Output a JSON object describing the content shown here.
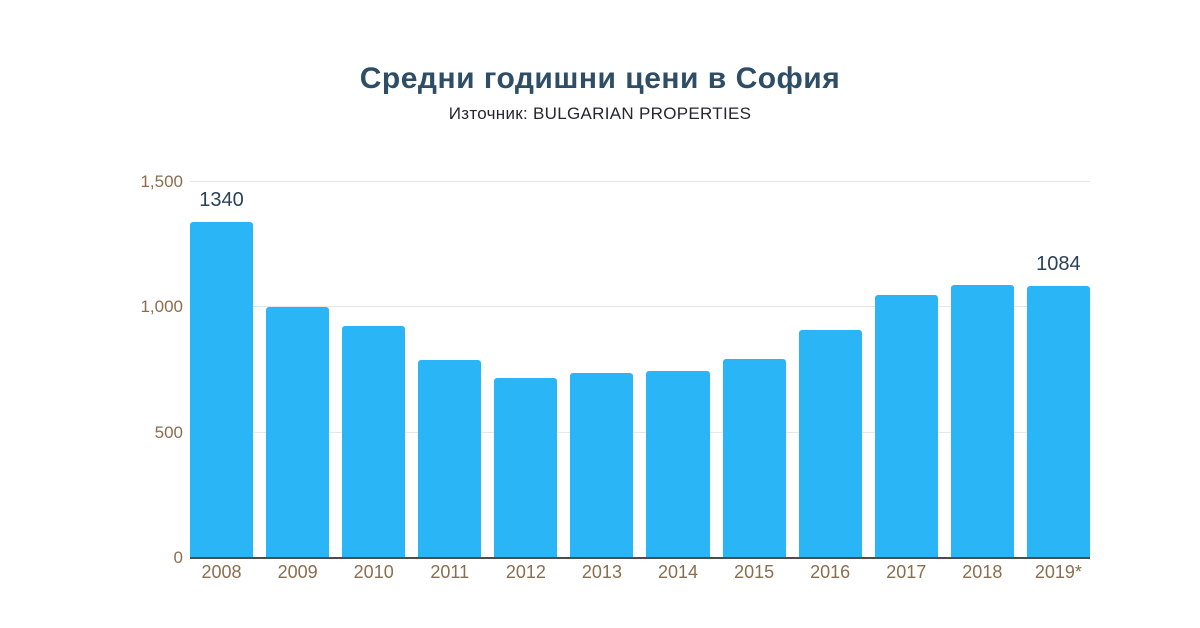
{
  "header": {
    "title": "Средни годишни цени в София",
    "subtitle": "Източник: BULGARIAN PROPERTIES"
  },
  "colors": {
    "bar": "#29B5F6",
    "title": "#2E4D66",
    "axis_label": "#8A6E4E",
    "value_label": "#2D4257",
    "gridline": "#E6E6E6",
    "baseline": "#4D4D4D",
    "background": "#FFFFFF"
  },
  "chart_data": {
    "type": "bar",
    "title": "Средни годишни цени в София",
    "subtitle": "Източник: BULGARIAN PROPERTIES",
    "categories": [
      "2008",
      "2009",
      "2010",
      "2011",
      "2012",
      "2013",
      "2014",
      "2015",
      "2016",
      "2017",
      "2018",
      "2019*"
    ],
    "values": [
      1340,
      1000,
      925,
      790,
      720,
      740,
      745,
      795,
      910,
      1050,
      1090,
      1084
    ],
    "value_labels": [
      "1340",
      "",
      "",
      "",
      "",
      "",
      "",
      "",
      "",
      "",
      "",
      "1084"
    ],
    "xlabel": "",
    "ylabel": "",
    "ylim": [
      0,
      1500
    ],
    "yticks": [
      {
        "value": 1500,
        "label": "1,500"
      },
      {
        "value": 1000,
        "label": "1,000"
      },
      {
        "value": 500,
        "label": "500"
      },
      {
        "value": 0,
        "label": "0"
      }
    ],
    "grid": true,
    "legend": false
  }
}
